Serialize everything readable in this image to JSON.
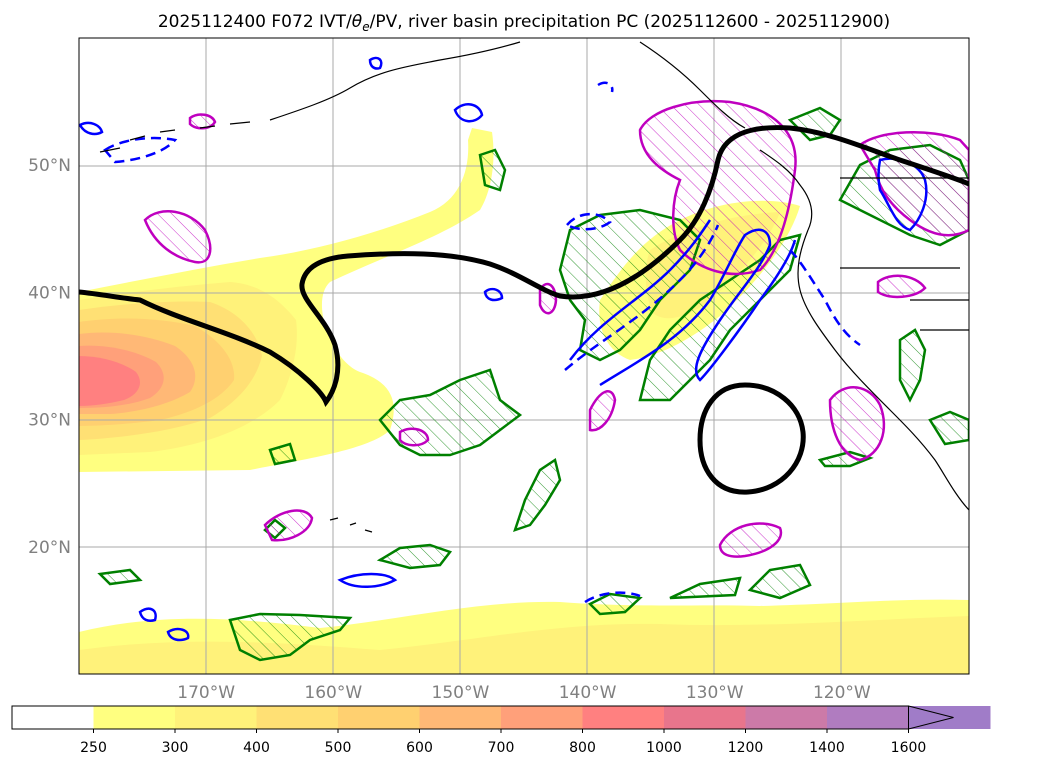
{
  "title": {
    "prefix": "2025112400 F072 IVT/",
    "theta": "θ",
    "theta_sub": "e",
    "suffix": "/PV, river basin precipitation PC (2025112600 - 2025112900)"
  },
  "axes": {
    "lat_labels": [
      "50°N",
      "40°N",
      "30°N",
      "20°N"
    ],
    "lat_values": [
      50,
      40,
      30,
      20
    ],
    "lon_labels": [
      "170°W",
      "160°W",
      "150°W",
      "140°W",
      "130°W",
      "120°W"
    ],
    "lon_values": [
      -170,
      -160,
      -150,
      -140,
      -130,
      -120
    ],
    "label_color": "#808080"
  },
  "colorbar": {
    "levels": [
      "250",
      "300",
      "400",
      "500",
      "600",
      "700",
      "800",
      "1000",
      "1200",
      "1400",
      "1600"
    ],
    "colors": [
      "#ffffff",
      "#ffff80",
      "#fff27a",
      "#ffe074",
      "#ffd070",
      "#ffb876",
      "#ffa07a",
      "#ff8080",
      "#e8758c",
      "#cc7aa8",
      "#b07cc0",
      "#a07cc8"
    ]
  },
  "colors": {
    "ivt_fills": [
      "#ffff80",
      "#fff27a",
      "#ffe074",
      "#ffd070",
      "#ffb876",
      "#ffa07a",
      "#ff8080"
    ],
    "pv_line": "#000000",
    "theta_e": "#0000ff",
    "precip_green": "#008000",
    "precip_magenta": "#bf00bf",
    "coastline": "#000000"
  }
}
